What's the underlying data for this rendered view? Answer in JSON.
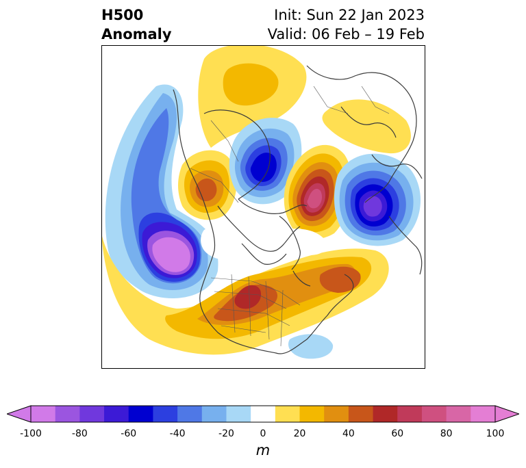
{
  "header": {
    "title_line1": "H500",
    "title_line2": "Anomaly",
    "init_text": "Init: Sun 22 Jan 2023",
    "valid_text": "Valid: 06 Feb – 19 Feb"
  },
  "colorbar": {
    "unit": "m",
    "ticks": [
      "-100",
      "-80",
      "-60",
      "-40",
      "-20",
      "0",
      "20",
      "40",
      "60",
      "80",
      "100"
    ],
    "levels": [
      -100,
      -90,
      -80,
      -70,
      -60,
      -50,
      -40,
      -30,
      -20,
      -10,
      10,
      20,
      30,
      40,
      50,
      60,
      70,
      80,
      90,
      100
    ],
    "colors": [
      "#d17ae8",
      "#9b55e0",
      "#7038dd",
      "#3c1ad6",
      "#0000d0",
      "#2c3fe0",
      "#4f78e6",
      "#77b0ee",
      "#a8d8f6",
      "#ffffff",
      "#ffdf52",
      "#f3b800",
      "#e18f10",
      "#c8561a",
      "#b02828",
      "#c03a5a",
      "#cf5080",
      "#d866a6",
      "#e47ed4"
    ],
    "under_color": "#d17ae8",
    "over_color": "#e47ed4"
  },
  "map_data": {
    "projection": "north-polar-stereographic",
    "anomalies": [
      {
        "region": "Gulf of Alaska / NE Pacific",
        "sign": "negative",
        "peak": -100
      },
      {
        "region": "Western Canada / Alaska interior",
        "sign": "positive",
        "peak": 40
      },
      {
        "region": "Central & Southern US",
        "sign": "positive",
        "peak": 60
      },
      {
        "region": "North Atlantic",
        "sign": "positive",
        "peak": 50
      },
      {
        "region": "Caribbean",
        "sign": "negative",
        "peak": -20
      },
      {
        "region": "Arctic / Siberia",
        "sign": "negative",
        "peak": -60
      },
      {
        "region": "Siberia / Arctic Ocean",
        "sign": "positive",
        "peak": 80
      },
      {
        "region": "Northern Europe / Scandinavia",
        "sign": "negative",
        "peak": -90
      },
      {
        "region": "Russia (polar)",
        "sign": "positive",
        "peak": 30
      }
    ]
  }
}
